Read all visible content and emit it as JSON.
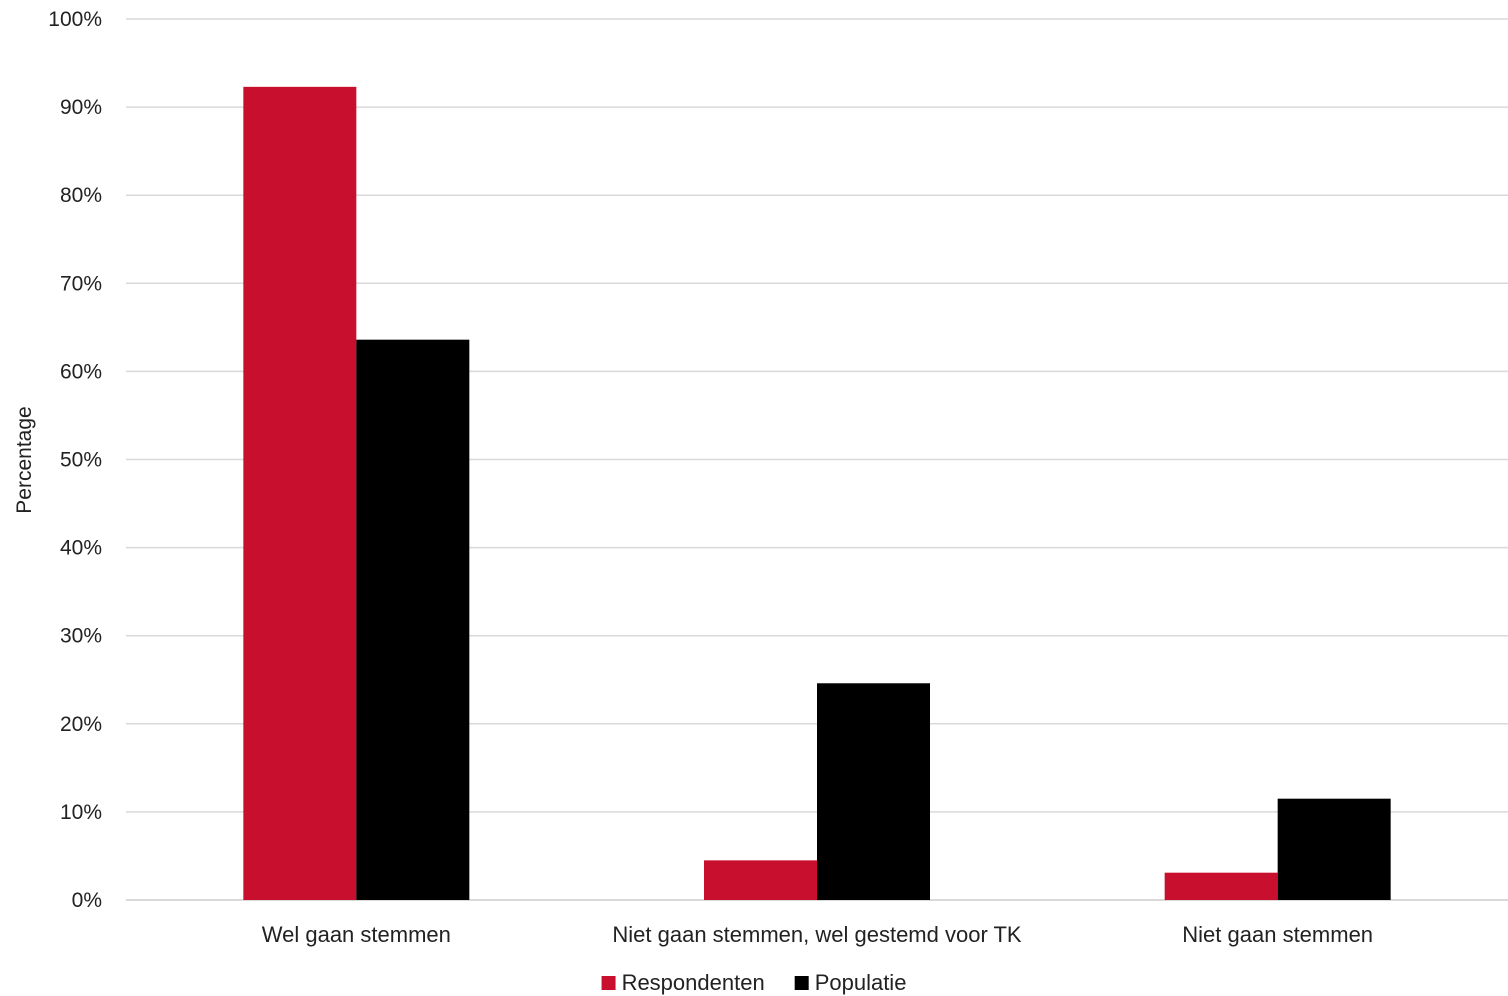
{
  "chart_data": {
    "type": "bar",
    "title": "",
    "xlabel": "",
    "ylabel": "Percentage",
    "categories": [
      "Wel gaan stemmen",
      "Niet gaan stemmen, wel gestemd voor TK",
      "Niet gaan stemmen"
    ],
    "series": [
      {
        "name": "Respondenten",
        "color": "#c8102e",
        "values": [
          92.3,
          4.5,
          3.1
        ]
      },
      {
        "name": "Populatie",
        "color": "#000000",
        "values": [
          63.6,
          24.6,
          11.5
        ]
      }
    ],
    "ylim": [
      0,
      100
    ],
    "yticks": [
      0,
      10,
      20,
      30,
      40,
      50,
      60,
      70,
      80,
      90,
      100
    ],
    "ytick_labels": [
      "0%",
      "10%",
      "20%",
      "30%",
      "40%",
      "50%",
      "60%",
      "70%",
      "80%",
      "90%",
      "100%"
    ],
    "grid": true,
    "grid_color": "#d9d9d9",
    "legend_position": "bottom"
  }
}
